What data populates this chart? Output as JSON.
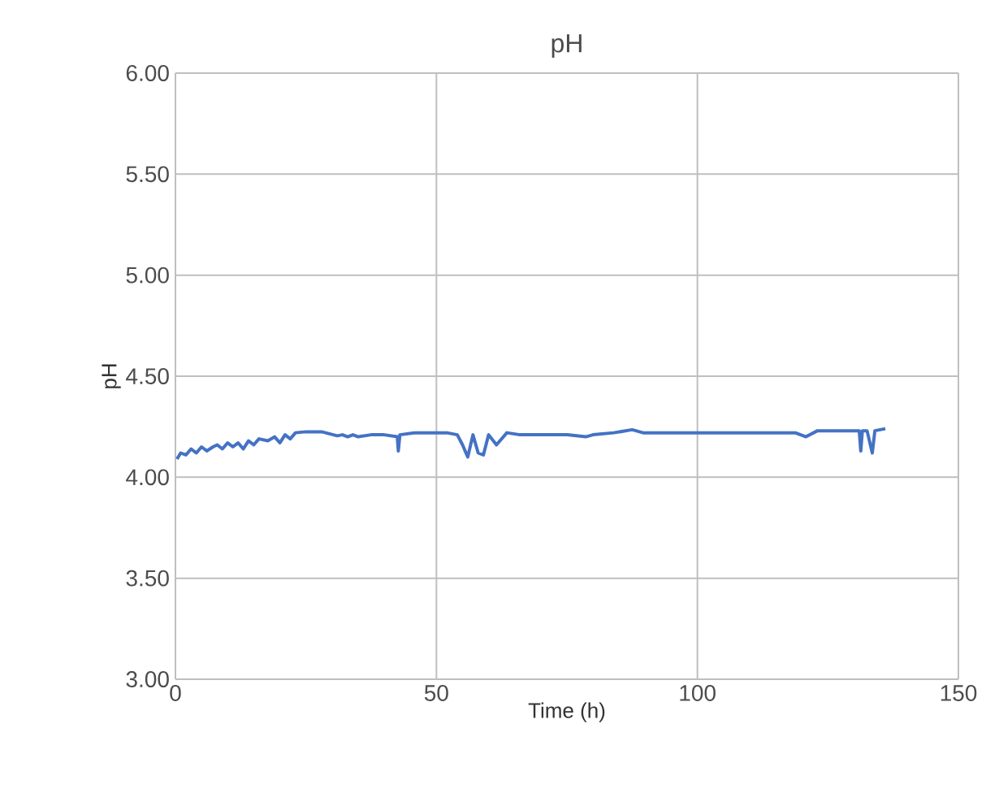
{
  "chart_data": {
    "type": "line",
    "title": "pH",
    "xlabel": "Time (h)",
    "ylabel": "pH",
    "xlim": [
      0,
      150
    ],
    "xticks": [
      0,
      50,
      100,
      150
    ],
    "ylim": [
      3,
      6
    ],
    "yticks": [
      {
        "value": 3,
        "label": "3.00"
      },
      {
        "value": 3.5,
        "label": "3.50"
      },
      {
        "value": 4,
        "label": "4.00"
      },
      {
        "value": 4.5,
        "label": "4.50"
      },
      {
        "value": 5,
        "label": "5.00"
      },
      {
        "value": 5.5,
        "label": "5.50"
      },
      {
        "value": 6,
        "label": "6.00"
      }
    ],
    "grid": true,
    "marker": "none",
    "line_style": "solid",
    "series": [
      {
        "color": "#4472c4",
        "x": [
          0.3,
          1,
          2,
          3,
          4,
          5,
          6,
          7.2,
          8,
          9,
          10,
          11,
          12,
          13,
          14,
          15,
          16,
          17.7,
          19,
          20,
          21,
          22,
          23,
          25,
          28,
          31,
          32,
          33,
          34,
          35,
          37.5,
          40,
          42.5,
          42.7,
          43,
          46,
          49,
          52,
          54,
          55,
          56,
          57,
          58,
          59,
          60,
          61.5,
          63.5,
          66,
          70.8,
          75,
          78.6,
          80,
          84,
          87.5,
          89.6,
          95,
          100,
          106,
          112,
          118.75,
          120.8,
          123,
          127,
          131,
          131.3,
          131.6,
          132.5,
          133.5,
          134,
          136
        ],
        "values": [
          4.09,
          4.12,
          4.11,
          4.14,
          4.12,
          4.15,
          4.13,
          4.15,
          4.16,
          4.14,
          4.17,
          4.15,
          4.17,
          4.14,
          4.18,
          4.16,
          4.19,
          4.18,
          4.2,
          4.17,
          4.21,
          4.19,
          4.22,
          4.225,
          4.225,
          4.205,
          4.21,
          4.2,
          4.21,
          4.2,
          4.21,
          4.21,
          4.2,
          4.13,
          4.21,
          4.22,
          4.22,
          4.22,
          4.21,
          4.16,
          4.1,
          4.21,
          4.12,
          4.11,
          4.21,
          4.16,
          4.22,
          4.21,
          4.21,
          4.21,
          4.2,
          4.21,
          4.22,
          4.235,
          4.22,
          4.22,
          4.22,
          4.22,
          4.22,
          4.22,
          4.2,
          4.23,
          4.23,
          4.23,
          4.13,
          4.23,
          4.23,
          4.12,
          4.23,
          4.24
        ]
      }
    ]
  }
}
